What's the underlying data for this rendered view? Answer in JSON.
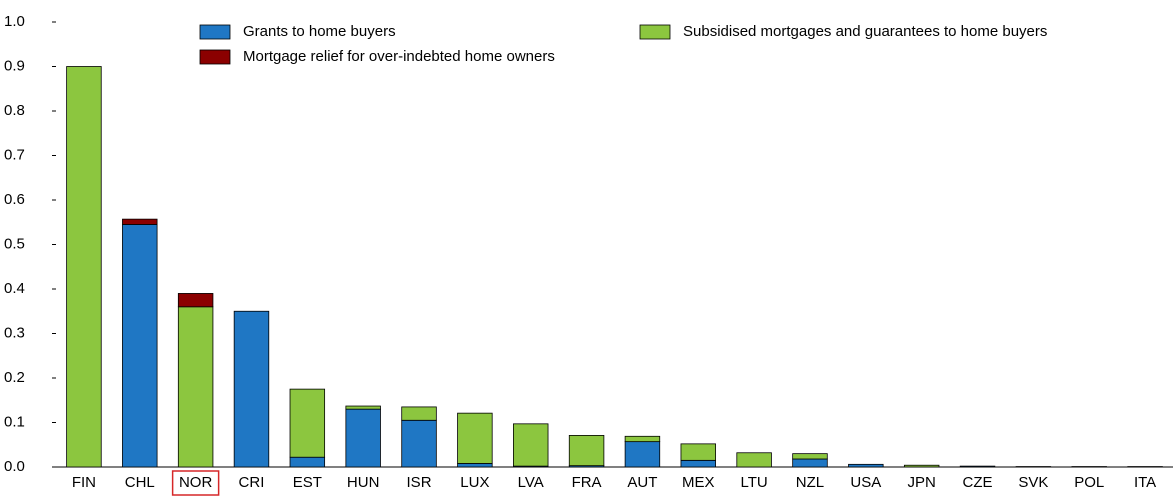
{
  "chart_data": {
    "type": "stacked_bar",
    "categories": [
      "FIN",
      "CHL",
      "NOR",
      "CRI",
      "EST",
      "HUN",
      "ISR",
      "LUX",
      "LVA",
      "FRA",
      "AUT",
      "MEX",
      "LTU",
      "NZL",
      "USA",
      "JPN",
      "CZE",
      "SVK",
      "POL",
      "ITA"
    ],
    "series": [
      {
        "name": "Grants to home buyers",
        "color": "#1f77c4",
        "values": [
          0,
          0.545,
          0,
          0.35,
          0.022,
          0.13,
          0.105,
          0.008,
          0.002,
          0.003,
          0.057,
          0.015,
          0,
          0.018,
          0.006,
          0,
          0.002,
          0,
          0,
          0
        ]
      },
      {
        "name": "Subsidised mortgages and guarantees to home buyers",
        "color": "#8cc63f",
        "values": [
          0.9,
          0,
          0.36,
          0,
          0.153,
          0.007,
          0.03,
          0.113,
          0.095,
          0.068,
          0.012,
          0.037,
          0.032,
          0.012,
          0,
          0.004,
          0,
          0.001,
          0.001,
          0.001
        ]
      },
      {
        "name": "Mortgage relief for over-indebted home owners",
        "color": "#8b0000",
        "values": [
          0,
          0.012,
          0.03,
          0,
          0,
          0,
          0,
          0,
          0,
          0,
          0,
          0,
          0,
          0,
          0,
          0,
          0,
          0,
          0,
          0
        ]
      }
    ],
    "ylim": [
      0,
      1
    ],
    "yticks": [
      {
        "value": 0,
        "label": "0.0"
      },
      0.1,
      0.2,
      0.3,
      0.4,
      0.5,
      0.6,
      0.7,
      0.8,
      0.9,
      {
        "value": 1,
        "label": "1.0"
      }
    ],
    "highlight": "NOR",
    "highlight_color": "#d62728"
  }
}
